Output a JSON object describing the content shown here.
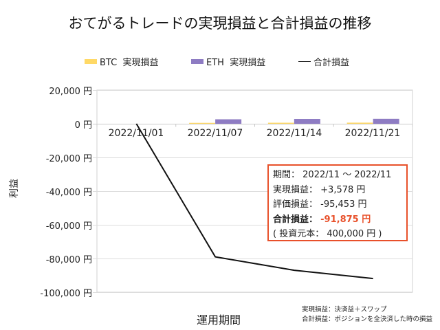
{
  "title": "おてがるトレードの実現損益と合計損益の推移",
  "legend": [
    {
      "label": "BTC  実現損益",
      "type": "bar",
      "color": "#FFD966"
    },
    {
      "label": "ETH  実現損益",
      "type": "bar",
      "color": "#8E7CC3"
    },
    {
      "label": "合計損益",
      "type": "line",
      "color": "#111111"
    }
  ],
  "y_axis": {
    "label": "利益",
    "ticks": [
      "20,000 円",
      "0 円",
      "-20,000 円",
      "-40,000 円",
      "-60,000 円",
      "-80,000 円",
      "-100,000 円"
    ]
  },
  "x_axis": {
    "label": "運用期間",
    "ticks": [
      "2022/11/01",
      "2022/11/07",
      "2022/11/14",
      "2022/11/21"
    ]
  },
  "info_box": {
    "period_label": "期間：",
    "period_value": "2022/11 ～ 2022/11",
    "realized_label": "実現損益：",
    "realized_value": "+3,578 円",
    "unrealized_label": "評価損益：",
    "unrealized_value": "-95,453 円",
    "total_label": "合計損益：",
    "total_value": "-91,875 円",
    "principal_open": "( 投資元本：",
    "principal_value": "400,000 円 )",
    "accent_color": "#E8502A"
  },
  "notes": [
    "実現損益：決済益＋スワップ",
    "合計損益：ポジションを全決済した時の損益"
  ],
  "chart_data": {
    "type": "bar",
    "title": "おてがるトレードの実現損益と合計損益の推移",
    "xlabel": "運用期間",
    "ylabel": "利益",
    "ylim": [
      -100000,
      20000
    ],
    "grid": true,
    "legend_position": "top",
    "categories": [
      "2022/11/01",
      "2022/11/07",
      "2022/11/14",
      "2022/11/21"
    ],
    "series": [
      {
        "name": "BTC 実現損益",
        "type": "bar",
        "color": "#FFD966",
        "values": [
          0,
          520,
          600,
          650
        ]
      },
      {
        "name": "ETH 実現損益",
        "type": "bar",
        "color": "#8E7CC3",
        "values": [
          0,
          2650,
          2850,
          2928
        ]
      },
      {
        "name": "合計損益",
        "type": "line",
        "color": "#111111",
        "values": [
          0,
          -79000,
          -87000,
          -91875
        ]
      }
    ],
    "annotations": [
      "期間： 2022/11 ～ 2022/11",
      "実現損益： +3,578 円",
      "評価損益： -95,453 円",
      "合計損益： -91,875 円",
      "( 投資元本： 400,000 円 )"
    ]
  }
}
